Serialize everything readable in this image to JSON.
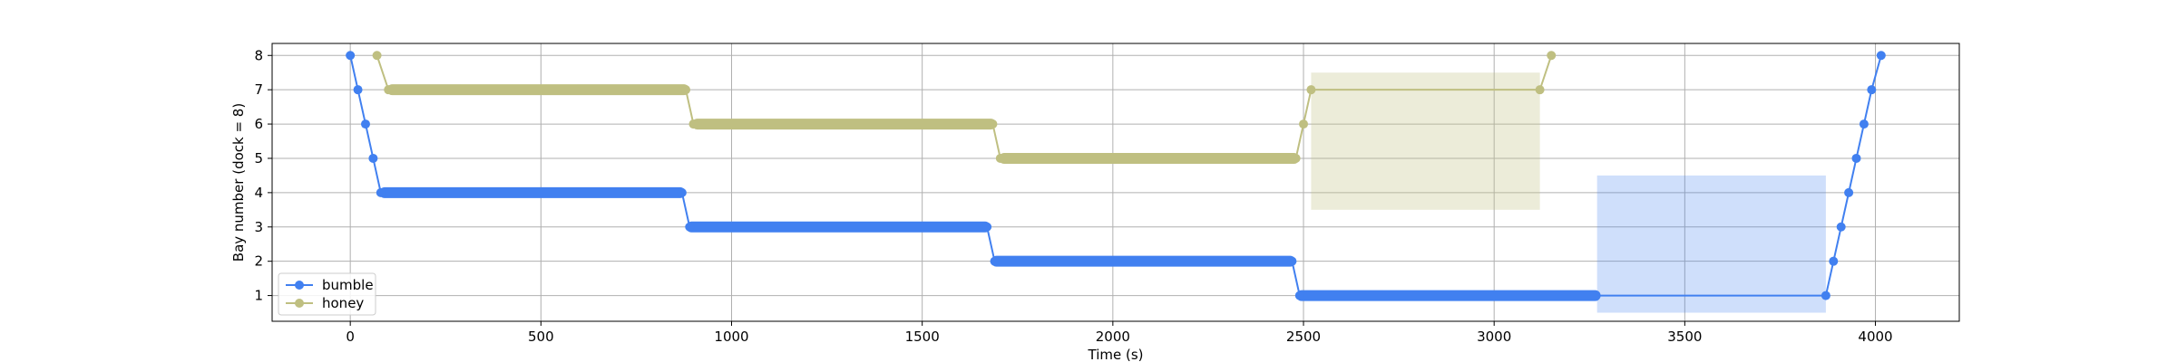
{
  "chart_data": {
    "type": "line",
    "xlabel": "Time (s)",
    "ylabel": "Bay number (dock = 8)",
    "xlim": [
      -205,
      4220
    ],
    "ylim": [
      0.25,
      8.35
    ],
    "xticks": [
      0,
      500,
      1000,
      1500,
      2000,
      2500,
      3000,
      3500,
      4000
    ],
    "yticks": [
      1,
      2,
      3,
      4,
      5,
      6,
      7,
      8
    ],
    "grid": true,
    "legend_position": "lower-left",
    "series": [
      {
        "name": "bumble",
        "color": "#4180f0",
        "points": [
          [
            0,
            8
          ],
          [
            20,
            7
          ],
          [
            40,
            6
          ],
          [
            60,
            5
          ],
          [
            80,
            4
          ],
          [
            870,
            4
          ],
          [
            890,
            3
          ],
          [
            1670,
            3
          ],
          [
            1690,
            2
          ],
          [
            2470,
            2
          ],
          [
            2490,
            1
          ],
          [
            3870,
            1
          ],
          [
            3890,
            2
          ],
          [
            3910,
            3
          ],
          [
            3930,
            4
          ],
          [
            3950,
            5
          ],
          [
            3970,
            6
          ],
          [
            3990,
            7
          ],
          [
            4015,
            8
          ]
        ],
        "dense_runs": [
          {
            "y": 4,
            "x_start": 90,
            "x_end": 865
          },
          {
            "y": 3,
            "x_start": 895,
            "x_end": 1665
          },
          {
            "y": 2,
            "x_start": 1695,
            "x_end": 2465
          },
          {
            "y": 1,
            "x_start": 2495,
            "x_end": 3265
          }
        ]
      },
      {
        "name": "honey",
        "color": "#bfbf81",
        "points": [
          [
            70,
            8
          ],
          [
            100,
            7
          ],
          [
            880,
            7
          ],
          [
            900,
            6
          ],
          [
            1685,
            6
          ],
          [
            1705,
            5
          ],
          [
            2480,
            5
          ],
          [
            2500,
            6
          ],
          [
            2520,
            7
          ],
          [
            3120,
            7
          ],
          [
            3150,
            8
          ]
        ],
        "dense_runs": [
          {
            "y": 7,
            "x_start": 110,
            "x_end": 875
          },
          {
            "y": 6,
            "x_start": 910,
            "x_end": 1680
          },
          {
            "y": 5,
            "x_start": 1715,
            "x_end": 2475
          }
        ]
      }
    ],
    "shaded_regions": [
      {
        "x0": 2520,
        "x1": 3120,
        "y0": 3.5,
        "y1": 7.5,
        "color": "#bfbf81",
        "opacity": 0.3
      },
      {
        "x0": 3270,
        "x1": 3870,
        "y0": 0.5,
        "y1": 4.5,
        "color": "#4180f0",
        "opacity": 0.25
      }
    ]
  }
}
